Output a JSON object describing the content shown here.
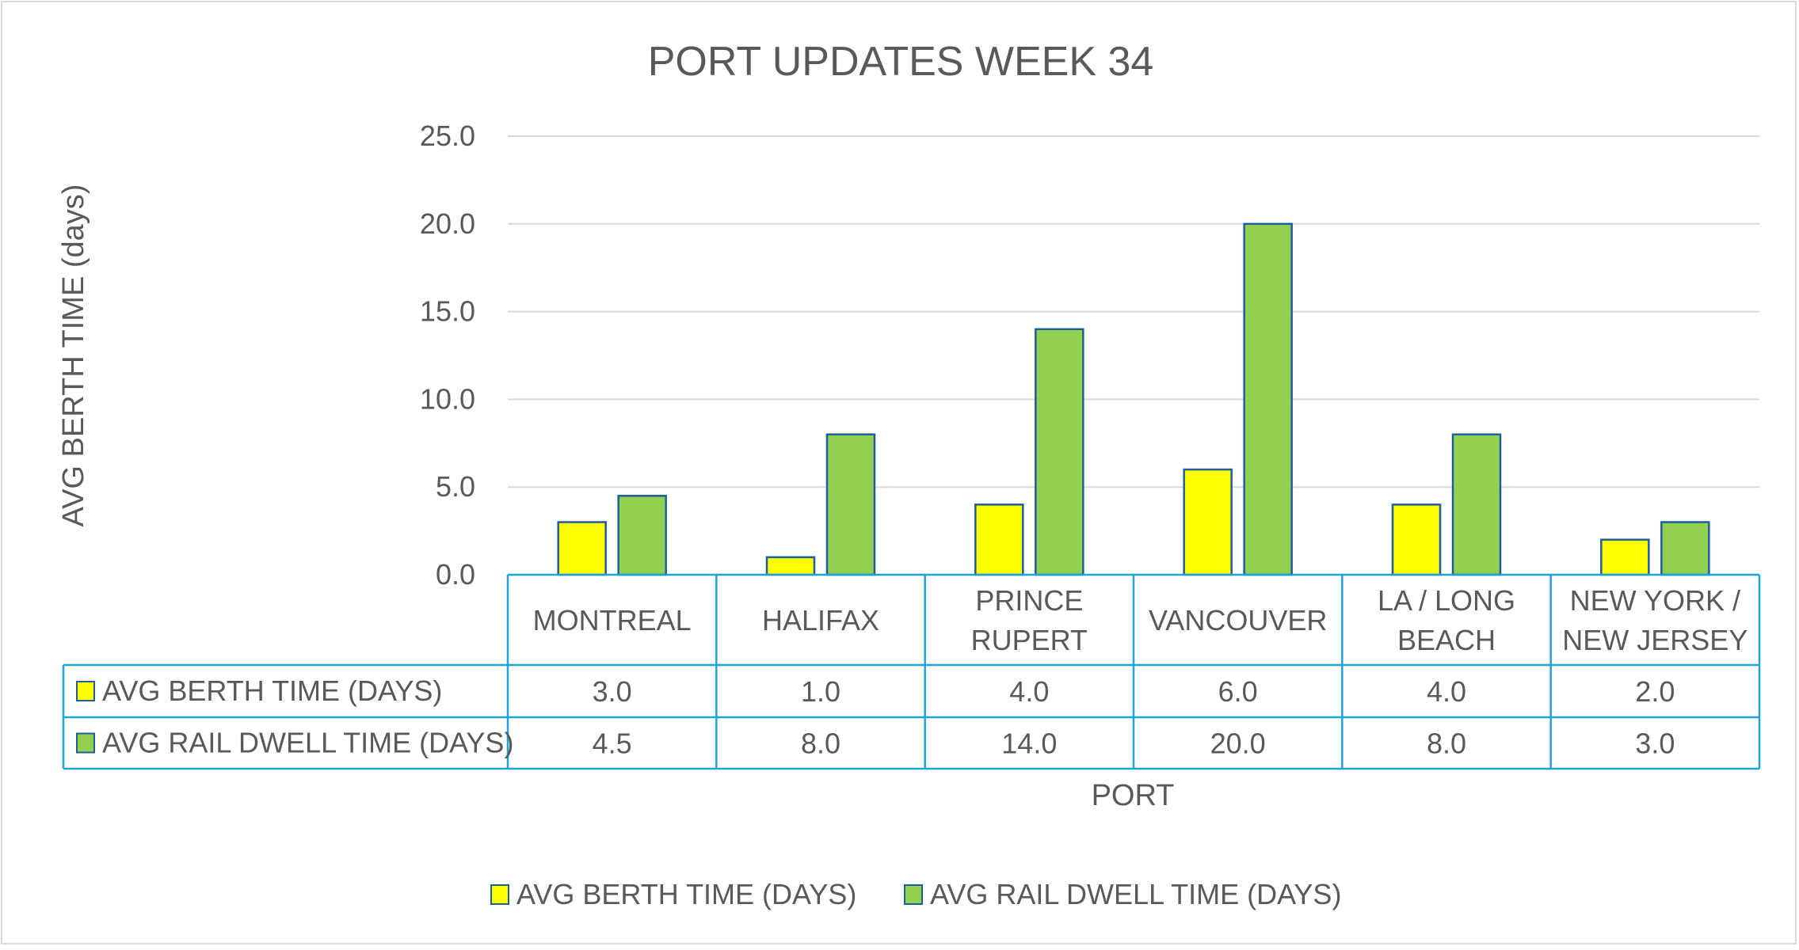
{
  "chart_data": {
    "type": "bar",
    "title": "PORT UPDATES WEEK 34",
    "ylabel": "AVG BERTH TIME (days)",
    "xlabel": "PORT",
    "ylim": [
      0,
      25
    ],
    "yticks": [
      "0.0",
      "5.0",
      "10.0",
      "15.0",
      "20.0",
      "25.0"
    ],
    "grid": true,
    "legend_position": "bottom",
    "categories": [
      [
        "MONTREAL"
      ],
      [
        "HALIFAX"
      ],
      [
        "PRINCE",
        "RUPERT"
      ],
      [
        "VANCOUVER"
      ],
      [
        "LA / LONG",
        "BEACH"
      ],
      [
        "NEW YORK /",
        "NEW JERSEY"
      ]
    ],
    "series": [
      {
        "name": "AVG BERTH TIME (DAYS)",
        "values": [
          3.0,
          1.0,
          4.0,
          6.0,
          4.0,
          2.0
        ],
        "labels": [
          "3.0",
          "1.0",
          "4.0",
          "6.0",
          "4.0",
          "2.0"
        ],
        "color": "#FFFF00",
        "stroke": "#1F5E9E"
      },
      {
        "name": "AVG RAIL DWELL TIME (DAYS)",
        "values": [
          4.5,
          8.0,
          14.0,
          20.0,
          8.0,
          3.0
        ],
        "labels": [
          "4.5",
          "8.0",
          "14.0",
          "20.0",
          "8.0",
          "3.0"
        ],
        "color": "#92D050",
        "stroke": "#1F5E9E"
      }
    ],
    "data_table": true,
    "colors": {
      "table_border": "#1FA3D9",
      "grid": "#d9d9d9",
      "text": "#595959"
    }
  }
}
